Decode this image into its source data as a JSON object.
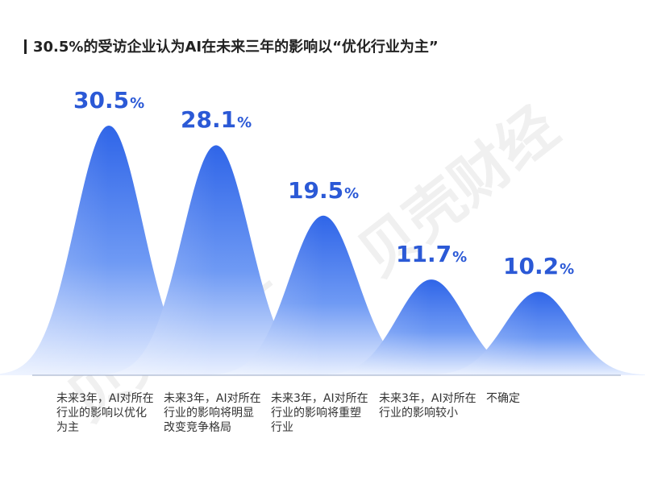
{
  "title": "30.5%的受访企业认为AI在未来三年的影响以“优化行业为主”",
  "watermark": "贝壳财经",
  "colors": {
    "accent": "#2b59d6",
    "peak_top": "#2f65e8",
    "peak_bottom": "#e9f0ff"
  },
  "chart_data": {
    "type": "area",
    "categories": [
      "未来3年，AI对所在行业的影响以优化为主",
      "未来3年，AI对所在行业的影响将明显改变竞争格局",
      "未来3年，AI对所在行业的影响将重塑行业",
      "未来3年，AI对所在行业的影响较小",
      "不确定"
    ],
    "values": [
      30.5,
      28.1,
      19.5,
      11.7,
      10.2
    ],
    "value_labels": [
      "30.5",
      "28.1",
      "19.5",
      "11.7",
      "10.2"
    ],
    "unit": "%",
    "title": "30.5%的受访企业认为AI在未来三年的影响以“优化行业为主”",
    "xlabel": "",
    "ylabel": ""
  }
}
